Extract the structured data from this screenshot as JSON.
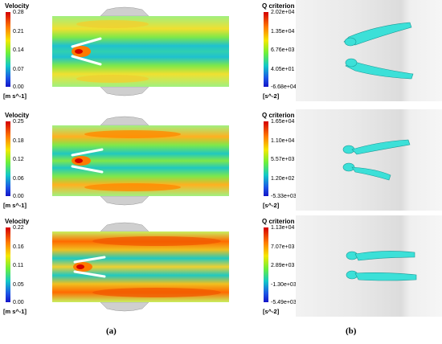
{
  "panel_labels": [
    "(a)",
    "(b)"
  ],
  "rows": [
    {
      "velocity": {
        "title": "Velocity",
        "unit": "[m s^-1]",
        "ticks": [
          "0.28",
          "0.21",
          "0.14",
          "0.07",
          "0.00"
        ]
      },
      "q": {
        "title": "Q criterion",
        "unit": "[s^-2]",
        "ticks": [
          "2.02e+04",
          "1.35e+04",
          "6.76e+03",
          "4.05e+01",
          "-6.68e+04"
        ]
      }
    },
    {
      "velocity": {
        "title": "Velocity",
        "unit": "[m s^-1]",
        "ticks": [
          "0.25",
          "0.18",
          "0.12",
          "0.06",
          "0.00"
        ]
      },
      "q": {
        "title": "Q criterion",
        "unit": "[s^-2]",
        "ticks": [
          "1.65e+04",
          "1.10e+04",
          "5.57e+03",
          "1.20e+02",
          "-5.33e+03"
        ]
      }
    },
    {
      "velocity": {
        "title": "Velocity",
        "unit": "[m s^-1]",
        "ticks": [
          "0.22",
          "0.16",
          "0.11",
          "0.05",
          "0.00"
        ]
      },
      "q": {
        "title": "Q criterion",
        "unit": "[s^-2]",
        "ticks": [
          "1.13e+04",
          "7.07e+03",
          "2.89e+03",
          "-1.30e+03",
          "-5.49e+03"
        ]
      }
    }
  ],
  "colors": {
    "hot": "#d40000",
    "warm": "#ff8a00",
    "yellow": "#f5e800",
    "green": "#6cf03a",
    "cyan": "#12c8c8",
    "blue": "#1414c8",
    "vortex": "#3ce0d8"
  }
}
